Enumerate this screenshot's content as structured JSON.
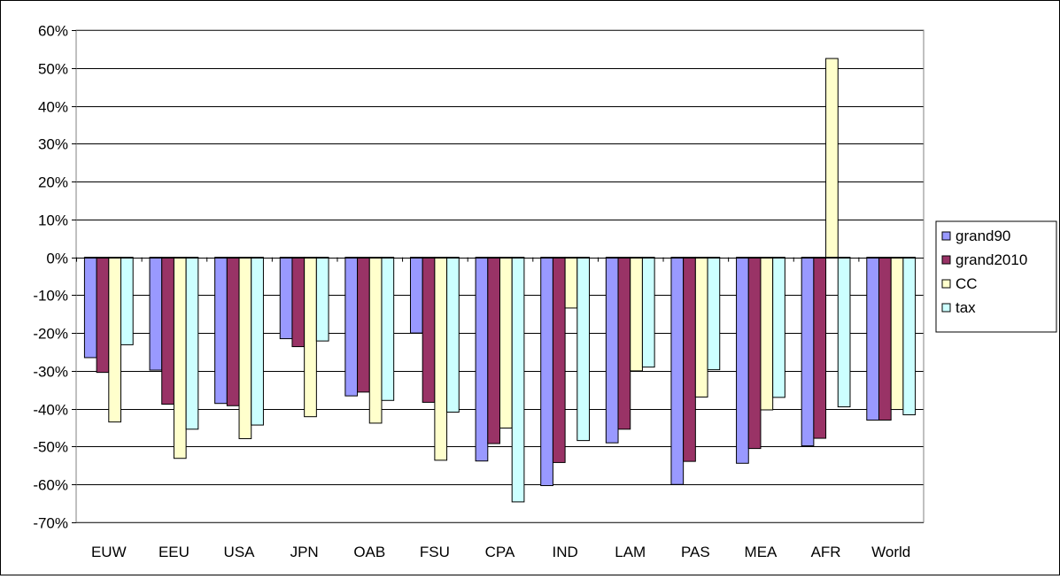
{
  "chart_data": {
    "type": "bar",
    "categories": [
      "EUW",
      "EEU",
      "USA",
      "JPN",
      "OAB",
      "FSU",
      "CPA",
      "IND",
      "LAM",
      "PAS",
      "MEA",
      "AFR",
      "World"
    ],
    "series": [
      {
        "name": "grand90",
        "color": "#9999FF",
        "values": [
          -26.5,
          -29.8,
          -38.6,
          -21.5,
          -36.6,
          -20.0,
          -53.8,
          -60.3,
          -49.0,
          -60.0,
          -54.4,
          -49.8,
          -43.0
        ]
      },
      {
        "name": "grand2010",
        "color": "#993366",
        "values": [
          -30.4,
          -38.8,
          -39.2,
          -23.6,
          -35.6,
          -38.3,
          -49.2,
          -54.2,
          -45.4,
          -53.9,
          -50.5,
          -47.8,
          -43.0
        ]
      },
      {
        "name": "CC",
        "color": "#FFFFCC",
        "values": [
          -43.5,
          -53.1,
          -47.9,
          -42.1,
          -43.8,
          -53.6,
          -45.1,
          -13.4,
          -30.0,
          -36.9,
          -40.3,
          52.5,
          -40.2
        ]
      },
      {
        "name": "tax",
        "color": "#CCFFFF",
        "values": [
          -23.1,
          -45.4,
          -44.3,
          -22.1,
          -37.8,
          -40.9,
          -64.6,
          -48.4,
          -29.0,
          -29.7,
          -37.0,
          -39.5,
          -41.6
        ]
      }
    ],
    "ylim": [
      -70,
      60
    ],
    "yticks": [
      60,
      50,
      40,
      30,
      20,
      10,
      0,
      -10,
      -20,
      -30,
      -40,
      -50,
      -60,
      -70
    ],
    "ytick_labels": [
      "60%",
      "50%",
      "40%",
      "30%",
      "20%",
      "10%",
      "0%",
      "-10%",
      "-20%",
      "-30%",
      "-40%",
      "-50%",
      "-60%",
      "-70%"
    ],
    "gridlines": true,
    "legend_position": "right"
  }
}
